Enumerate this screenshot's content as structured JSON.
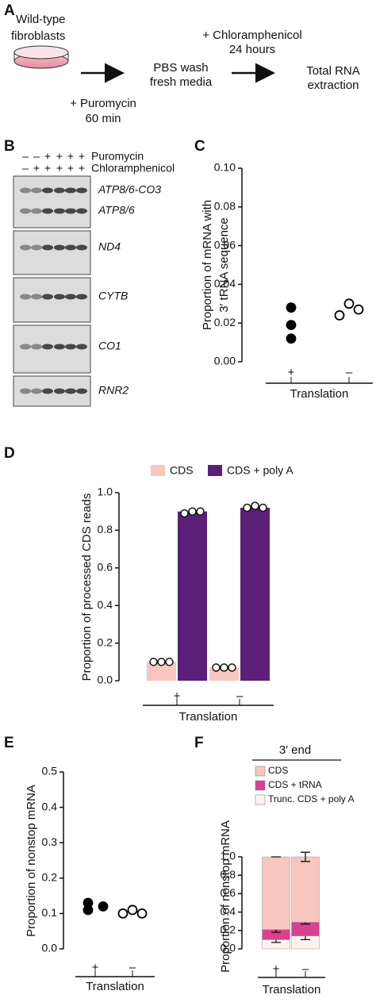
{
  "panel_labels": [
    "A",
    "B",
    "C",
    "D",
    "E",
    "F"
  ],
  "diagram": {
    "start": [
      "Wild-type",
      "fibroblasts"
    ],
    "step1": [
      "+ Puromycin",
      "60 min"
    ],
    "step2": [
      "PBS wash",
      "fresh media"
    ],
    "step3": [
      "+ Chloramphenicol",
      "24 hours"
    ],
    "end": [
      "Total RNA",
      "extraction"
    ]
  },
  "blot": {
    "treatments": [
      {
        "name": "Puromycin",
        "signs": [
          "–",
          "–",
          "+",
          "+",
          "+",
          "+"
        ]
      },
      {
        "name": "Chloramphenicol",
        "signs": [
          "–",
          "+",
          "+",
          "+",
          "+",
          "+"
        ]
      }
    ],
    "gels": [
      [
        "ATP8/6-CO3",
        "ATP8/6"
      ],
      [
        "ND4"
      ],
      [
        "CYTB"
      ],
      [
        "CO1"
      ],
      [
        "RNR2"
      ]
    ]
  },
  "chart_data": [
    {
      "type": "strip",
      "ylabel": [
        "Proportion of mRNA with",
        "3′ tRNA sequence"
      ],
      "xlabel": "Translation",
      "categories": [
        "+",
        "–"
      ],
      "values": [
        [
          0.028,
          0.019,
          0.012
        ],
        [
          0.024,
          0.03,
          0.027
        ]
      ],
      "filled": [
        true,
        false
      ],
      "color": "#000000",
      "ylim": [
        0,
        0.1
      ],
      "yticks": [
        {
          "value": 0,
          "label": "0.00"
        },
        0.02,
        0.04,
        0.06,
        0.08,
        {
          "value": 0.1,
          "label": "0.10"
        }
      ]
    },
    {
      "type": "bar",
      "ylabel": "Proportion of processed CDS reads",
      "xlabel": "Translation",
      "categories": [
        "+",
        "–"
      ],
      "series": [
        {
          "name": "CDS",
          "color": "#f7c6bf",
          "values": [
            0.1,
            0.07
          ],
          "points": [
            [
              0.1,
              0.1,
              0.1
            ],
            [
              0.07,
              0.07,
              0.07
            ]
          ]
        },
        {
          "name": "CDS + poly A",
          "color": "#5c1f78",
          "values": [
            0.9,
            0.92
          ],
          "points": [
            [
              0.89,
              0.9,
              0.9
            ],
            [
              0.92,
              0.93,
              0.92
            ]
          ]
        }
      ],
      "ylim": [
        0,
        1
      ],
      "yticks": [
        {
          "value": 0,
          "label": "0.0"
        },
        0.2,
        0.4,
        0.6,
        0.8,
        {
          "value": 1,
          "label": "1.0"
        }
      ]
    },
    {
      "type": "strip",
      "ylabel": [
        "Proportion of nonstop mRNA"
      ],
      "xlabel": "Translation",
      "categories": [
        "+",
        "–"
      ],
      "values": [
        [
          0.13,
          0.11,
          0.12
        ],
        [
          0.1,
          0.11,
          0.1
        ]
      ],
      "filled": [
        true,
        false
      ],
      "color": "#000000",
      "ylim": [
        0,
        0.5
      ],
      "yticks": [
        {
          "value": 0,
          "label": "0.0"
        },
        0.1,
        0.2,
        0.3,
        0.4,
        0.5
      ]
    },
    {
      "type": "stacked_bar",
      "title": "3′ end",
      "ylabel": "Proportion of nonstop mRNA",
      "xlabel": "Translation",
      "categories": [
        "+",
        "–"
      ],
      "series": [
        {
          "name": "Trunc. CDS + poly A",
          "color": "#fdf3ee",
          "values": [
            0.1,
            0.14
          ],
          "errors": [
            0.03,
            0.04
          ]
        },
        {
          "name": "CDS + tRNA",
          "color": "#d8418f",
          "values": [
            0.11,
            0.15
          ],
          "errors": [
            0.03,
            0.02
          ]
        },
        {
          "name": "CDS",
          "color": "#f7c6bf",
          "values": [
            0.79,
            0.71
          ],
          "errors": [
            0,
            0.05
          ]
        }
      ],
      "ylim": [
        0,
        1
      ],
      "yticks": [
        {
          "value": 0,
          "label": "0.0"
        },
        0.2,
        0.4,
        0.6,
        0.8,
        {
          "value": 1,
          "label": "1.0"
        }
      ]
    }
  ]
}
